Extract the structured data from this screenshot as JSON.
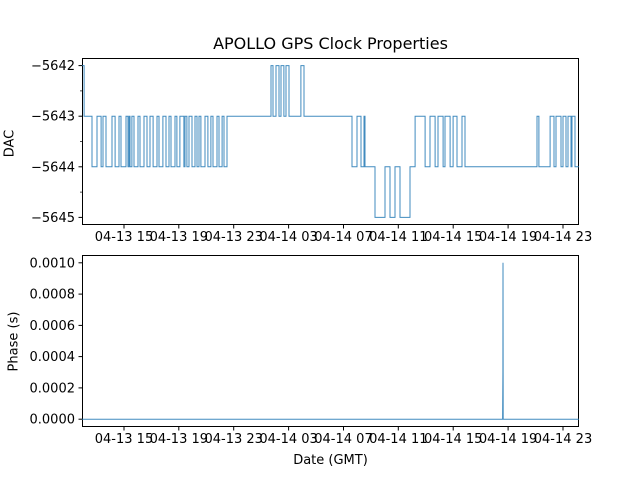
{
  "figure": {
    "title": "APOLLO GPS Clock Properties",
    "background": "#ffffff",
    "line_color": "#1f77b4",
    "axis_color": "#000000"
  },
  "chart_data": [
    {
      "type": "line",
      "name": "dac",
      "title": "APOLLO GPS Clock Properties",
      "ylabel": "DAC",
      "draw": "steps-post",
      "x_unit": "hours, 0 = 04-13 00:00 GMT",
      "xlim": [
        11.94,
        48.17
      ],
      "ylim": [
        -5645.15,
        -5641.85
      ],
      "grid": false,
      "xticks": [
        {
          "t": 15,
          "label": "04-13 15"
        },
        {
          "t": 19,
          "label": "04-13 19"
        },
        {
          "t": 23,
          "label": "04-13 23"
        },
        {
          "t": 27,
          "label": "04-14 03"
        },
        {
          "t": 31,
          "label": "04-14 07"
        },
        {
          "t": 35,
          "label": "04-14 11"
        },
        {
          "t": 39,
          "label": "04-14 15"
        },
        {
          "t": 43,
          "label": "04-14 19"
        },
        {
          "t": 47,
          "label": "04-14 23"
        }
      ],
      "yticks": [
        {
          "v": -5642,
          "label": "−5642"
        },
        {
          "v": -5643,
          "label": "−5643"
        },
        {
          "v": -5644,
          "label": "−5644"
        },
        {
          "v": -5645,
          "label": "−5645"
        }
      ],
      "yticks_minor": [
        -5642.5,
        -5643.5,
        -5644.5
      ],
      "steps": [
        [
          11.94,
          -5642
        ],
        [
          12.09,
          -5643
        ],
        [
          12.67,
          -5644
        ],
        [
          13.03,
          -5643
        ],
        [
          13.33,
          -5644
        ],
        [
          13.47,
          -5643
        ],
        [
          13.69,
          -5644
        ],
        [
          14.13,
          -5643
        ],
        [
          14.35,
          -5644
        ],
        [
          14.64,
          -5643
        ],
        [
          14.78,
          -5644
        ],
        [
          15.15,
          -5643
        ],
        [
          15.29,
          -5644
        ],
        [
          15.37,
          -5643
        ],
        [
          15.44,
          -5644
        ],
        [
          15.58,
          -5643
        ],
        [
          15.73,
          -5644
        ],
        [
          16.02,
          -5643
        ],
        [
          16.17,
          -5644
        ],
        [
          16.46,
          -5643
        ],
        [
          16.68,
          -5644
        ],
        [
          16.9,
          -5643
        ],
        [
          17.12,
          -5644
        ],
        [
          17.41,
          -5643
        ],
        [
          17.55,
          -5644
        ],
        [
          17.84,
          -5643
        ],
        [
          18.06,
          -5644
        ],
        [
          18.28,
          -5643
        ],
        [
          18.43,
          -5644
        ],
        [
          18.72,
          -5643
        ],
        [
          18.86,
          -5644
        ],
        [
          19.08,
          -5643
        ],
        [
          19.37,
          -5644
        ],
        [
          19.45,
          -5643
        ],
        [
          19.59,
          -5644
        ],
        [
          19.74,
          -5643
        ],
        [
          19.96,
          -5644
        ],
        [
          20.18,
          -5643
        ],
        [
          20.32,
          -5644
        ],
        [
          20.47,
          -5643
        ],
        [
          20.61,
          -5644
        ],
        [
          20.91,
          -5643
        ],
        [
          21.12,
          -5644
        ],
        [
          21.34,
          -5643
        ],
        [
          21.49,
          -5644
        ],
        [
          21.78,
          -5643
        ],
        [
          21.93,
          -5644
        ],
        [
          22.15,
          -5643
        ],
        [
          22.29,
          -5644
        ],
        [
          22.51,
          -5643
        ],
        [
          25.72,
          -5642
        ],
        [
          25.86,
          -5643
        ],
        [
          26.08,
          -5642
        ],
        [
          26.3,
          -5643
        ],
        [
          26.45,
          -5642
        ],
        [
          26.66,
          -5643
        ],
        [
          26.81,
          -5642
        ],
        [
          27.03,
          -5643
        ],
        [
          27.9,
          -5642
        ],
        [
          28.12,
          -5643
        ],
        [
          31.62,
          -5644
        ],
        [
          31.99,
          -5643
        ],
        [
          32.28,
          -5644
        ],
        [
          32.5,
          -5643
        ],
        [
          32.57,
          -5644
        ],
        [
          33.3,
          -5645
        ],
        [
          34.03,
          -5644
        ],
        [
          34.39,
          -5645
        ],
        [
          34.76,
          -5644
        ],
        [
          35.12,
          -5645
        ],
        [
          35.85,
          -5644
        ],
        [
          36.22,
          -5643
        ],
        [
          36.95,
          -5644
        ],
        [
          37.31,
          -5643
        ],
        [
          37.68,
          -5644
        ],
        [
          37.89,
          -5643
        ],
        [
          38.26,
          -5644
        ],
        [
          38.4,
          -5643
        ],
        [
          38.77,
          -5644
        ],
        [
          38.99,
          -5643
        ],
        [
          39.28,
          -5644
        ],
        [
          39.64,
          -5643
        ],
        [
          39.86,
          -5644
        ],
        [
          45.11,
          -5643
        ],
        [
          45.25,
          -5644
        ],
        [
          46.06,
          -5643
        ],
        [
          46.35,
          -5644
        ],
        [
          46.49,
          -5643
        ],
        [
          46.86,
          -5644
        ],
        [
          47.0,
          -5643
        ],
        [
          47.22,
          -5644
        ],
        [
          47.37,
          -5643
        ],
        [
          47.59,
          -5644
        ],
        [
          47.66,
          -5643
        ],
        [
          47.88,
          -5644
        ]
      ]
    },
    {
      "type": "line",
      "name": "phase",
      "ylabel": "Phase (s)",
      "xlabel": "Date (GMT)",
      "draw": "linear",
      "x_unit": "hours, 0 = 04-13 00:00 GMT",
      "xlim": [
        11.94,
        48.17
      ],
      "ylim": [
        -5e-05,
        0.00105
      ],
      "grid": false,
      "xticks": [
        {
          "t": 15,
          "label": "04-13 15"
        },
        {
          "t": 19,
          "label": "04-13 19"
        },
        {
          "t": 23,
          "label": "04-13 23"
        },
        {
          "t": 27,
          "label": "04-14 03"
        },
        {
          "t": 31,
          "label": "04-14 07"
        },
        {
          "t": 35,
          "label": "04-14 11"
        },
        {
          "t": 39,
          "label": "04-14 15"
        },
        {
          "t": 43,
          "label": "04-14 19"
        },
        {
          "t": 47,
          "label": "04-14 23"
        }
      ],
      "yticks": [
        {
          "v": 0.001,
          "label": "0.0010"
        },
        {
          "v": 0.0008,
          "label": "0.0008"
        },
        {
          "v": 0.0006,
          "label": "0.0006"
        },
        {
          "v": 0.0004,
          "label": "0.0004"
        },
        {
          "v": 0.0002,
          "label": "0.0002"
        },
        {
          "v": 0.0,
          "label": "0.0000"
        }
      ],
      "yticks_minor": [],
      "points": [
        [
          11.94,
          0
        ],
        [
          42.6,
          0
        ],
        [
          42.62,
          0.0003
        ],
        [
          42.63,
          0.001
        ],
        [
          42.645,
          0
        ],
        [
          48.17,
          0
        ]
      ]
    }
  ]
}
